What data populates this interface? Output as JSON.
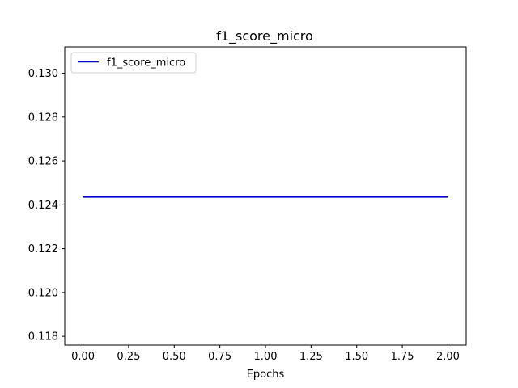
{
  "chart_data": {
    "type": "line",
    "title": "f1_score_micro",
    "xlabel": "Epochs",
    "ylabel": "",
    "x": [
      0,
      1,
      2
    ],
    "series": [
      {
        "name": "f1_score_micro",
        "color": "#0000cc",
        "values": [
          0.12435,
          0.12435,
          0.12435
        ]
      }
    ],
    "xlim": [
      -0.1,
      2.1
    ],
    "ylim": [
      0.1176,
      0.1312
    ],
    "xticks": [
      0.0,
      0.25,
      0.5,
      0.75,
      1.0,
      1.25,
      1.5,
      1.75,
      2.0
    ],
    "xtick_labels": [
      "0.00",
      "0.25",
      "0.50",
      "0.75",
      "1.00",
      "1.25",
      "1.50",
      "1.75",
      "2.00"
    ],
    "yticks": [
      0.118,
      0.12,
      0.122,
      0.124,
      0.126,
      0.128,
      0.13
    ],
    "ytick_labels": [
      "0.118",
      "0.120",
      "0.122",
      "0.124",
      "0.126",
      "0.128",
      "0.130"
    ],
    "grid": false,
    "legend_position": "top-left"
  }
}
